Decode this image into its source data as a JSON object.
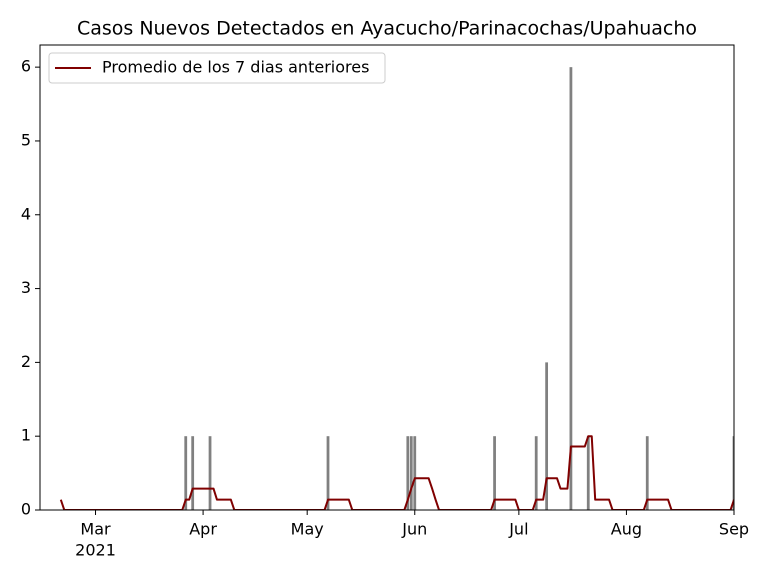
{
  "chart_data": {
    "type": "bar",
    "title": "Casos Nuevos Detectados en Ayacucho/Parinacochas/Upahuacho",
    "bars": {
      "color": "#808080",
      "x": [
        "2021-03-27",
        "2021-03-29",
        "2021-04-03",
        "2021-05-07",
        "2021-05-30",
        "2021-05-31",
        "2021-06-01",
        "2021-06-24",
        "2021-07-06",
        "2021-07-09",
        "2021-07-16",
        "2021-07-21",
        "2021-08-07",
        "2021-09-01"
      ],
      "values": [
        1,
        1,
        1,
        1,
        1,
        1,
        1,
        1,
        1,
        2,
        6,
        1,
        1,
        1
      ]
    },
    "series": [
      {
        "name": "Promedio de los 7 dias anteriores",
        "color": "#800000",
        "x": [
          "2021-02-19",
          "2021-02-20",
          "2021-03-26",
          "2021-03-27",
          "2021-03-28",
          "2021-03-29",
          "2021-04-04",
          "2021-04-05",
          "2021-04-09",
          "2021-04-10",
          "2021-05-06",
          "2021-05-07",
          "2021-05-13",
          "2021-05-14",
          "2021-05-29",
          "2021-05-30",
          "2021-05-31",
          "2021-06-01",
          "2021-06-05",
          "2021-06-06",
          "2021-06-07",
          "2021-06-08",
          "2021-06-23",
          "2021-06-24",
          "2021-06-30",
          "2021-07-01",
          "2021-07-05",
          "2021-07-06",
          "2021-07-08",
          "2021-07-09",
          "2021-07-12",
          "2021-07-13",
          "2021-07-15",
          "2021-07-16",
          "2021-07-20",
          "2021-07-21",
          "2021-07-22",
          "2021-07-23",
          "2021-07-27",
          "2021-07-28",
          "2021-08-06",
          "2021-08-07",
          "2021-08-13",
          "2021-08-14",
          "2021-08-31",
          "2021-09-01"
        ],
        "values": [
          0.14,
          0,
          0,
          0.14,
          0.14,
          0.29,
          0.29,
          0.14,
          0.14,
          0,
          0,
          0.14,
          0.14,
          0,
          0,
          0.14,
          0.29,
          0.43,
          0.43,
          0.29,
          0.14,
          0,
          0,
          0.14,
          0.14,
          0,
          0,
          0.14,
          0.14,
          0.43,
          0.43,
          0.29,
          0.29,
          0.86,
          0.86,
          1.0,
          1.0,
          0.14,
          0.14,
          0,
          0,
          0.14,
          0.14,
          0,
          0,
          0.14
        ]
      }
    ],
    "xlim": [
      "2021-02-13",
      "2021-09-01"
    ],
    "xticks": [
      {
        "value": "2021-03-01",
        "label": "Mar"
      },
      {
        "value": "2021-04-01",
        "label": "Apr"
      },
      {
        "value": "2021-05-01",
        "label": "May"
      },
      {
        "value": "2021-06-01",
        "label": "Jun"
      },
      {
        "value": "2021-07-01",
        "label": "Jul"
      },
      {
        "value": "2021-08-01",
        "label": "Aug"
      },
      {
        "value": "2021-09-01",
        "label": "Sep"
      }
    ],
    "x_year_label": "2021",
    "ylim": [
      0,
      6.3
    ],
    "yticks": [
      0,
      1,
      2,
      3,
      4,
      5,
      6
    ],
    "legend": "upper left",
    "grid": false
  }
}
